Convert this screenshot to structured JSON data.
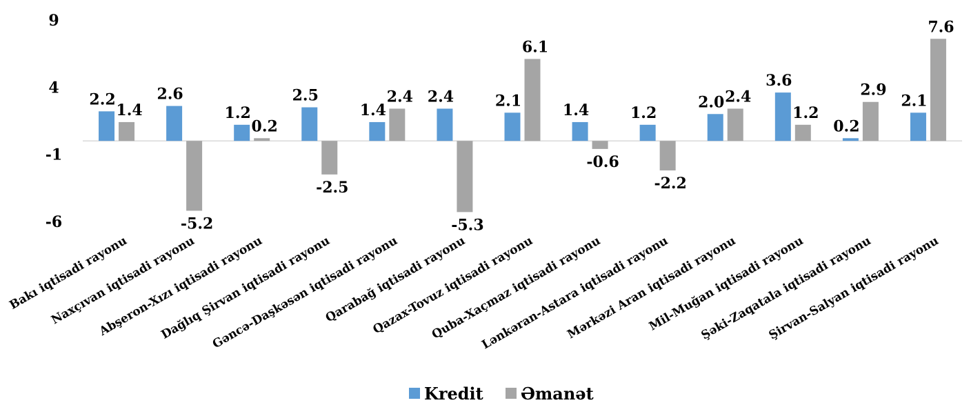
{
  "chart_data": {
    "type": "bar",
    "title": "",
    "xlabel": "",
    "ylabel": "",
    "ylim": [
      -6,
      9
    ],
    "yticks": [
      "9",
      "4",
      "-1",
      "-6"
    ],
    "yticks_values": [
      9,
      4,
      -1,
      -6
    ],
    "grid": false,
    "legend_position": "bottom",
    "categories": [
      "Bakı iqtisadi rayonu",
      "Naxçıvan iqtisadi rayonu",
      "Abşeron-Xızı iqtisadi rayonu",
      "Dağlıq Şirvan iqtisadi rayonu",
      "Gəncə-Daşkəsən iqtisadi rayonu",
      "Qarabağ iqtisadi rayonu",
      "Qazax-Tovuz iqtisadi rayonu",
      "Quba-Xaçmaz iqtisadi rayonu",
      "Lənkəran-Astara iqtisadi rayonu",
      "Mərkəzi Aran iqtisadi rayonu",
      "Mil-Muğan iqtisadi rayonu",
      "Şəki-Zaqatala iqtisadi rayonu",
      "Şirvan-Salyan iqtisadi rayonu"
    ],
    "series": [
      {
        "name": "Kredit",
        "color": "#5b9bd5",
        "values": [
          2.2,
          2.6,
          1.2,
          2.5,
          1.4,
          2.4,
          2.1,
          1.4,
          1.2,
          2.0,
          3.6,
          0.2,
          2.1
        ],
        "labels": [
          "2.2",
          "2.6",
          "1.2",
          "2.5",
          "1.4",
          "2.4",
          "2.1",
          "1.4",
          "1.2",
          "2.0",
          "3.6",
          "0.2",
          "2.1"
        ]
      },
      {
        "name": "Əmanət",
        "color": "#a5a5a5",
        "values": [
          1.4,
          -5.2,
          0.2,
          -2.5,
          2.4,
          -5.3,
          6.1,
          -0.6,
          -2.2,
          2.4,
          1.2,
          2.9,
          7.6
        ],
        "labels": [
          "1.4",
          "-5.2",
          "0.2",
          "-2.5",
          "2.4",
          "-5.3",
          "6.1",
          "-0.6",
          "-2.2",
          "2.4",
          "1.2",
          "2.9",
          "7.6"
        ]
      }
    ]
  }
}
